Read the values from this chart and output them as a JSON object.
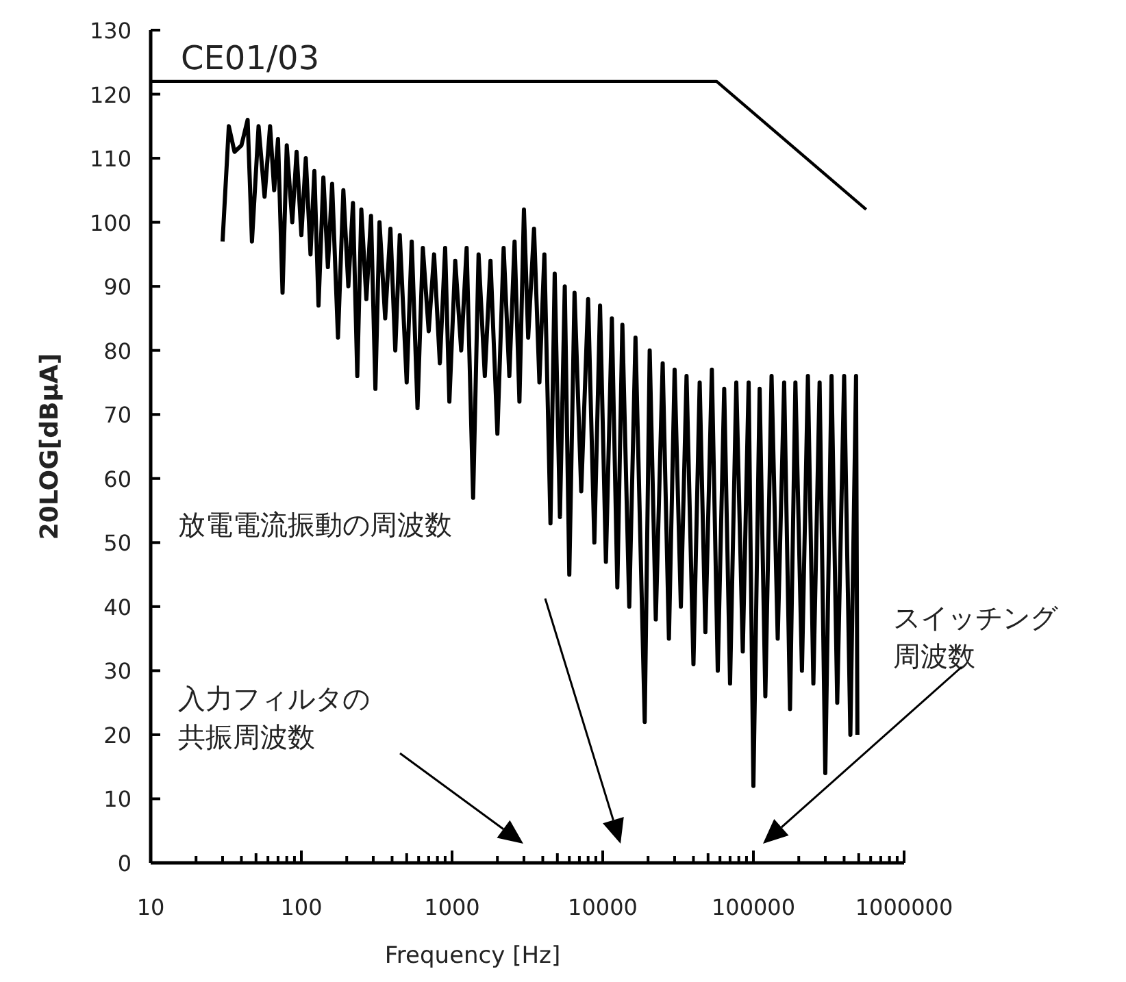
{
  "chart_data": {
    "type": "line",
    "xlabel": "Frequency [Hz]",
    "ylabel": "20LOG[dBμA]",
    "log": "x",
    "xlim": [
      10,
      1000000
    ],
    "ylim": [
      0,
      130
    ],
    "xticks": [
      10,
      100,
      1000,
      10000,
      100000,
      1000000
    ],
    "yticks": [
      0,
      10,
      20,
      30,
      40,
      50,
      60,
      70,
      80,
      90,
      100,
      110,
      120,
      130
    ],
    "series": [
      {
        "color": "#000000",
        "x": [
          30,
          33,
          36,
          40,
          44,
          47,
          52,
          57,
          62,
          66,
          70,
          75,
          80,
          87,
          93,
          100,
          107,
          115,
          122,
          130,
          140,
          150,
          160,
          175,
          190,
          205,
          220,
          235,
          250,
          270,
          290,
          310,
          330,
          360,
          390,
          420,
          450,
          500,
          540,
          590,
          640,
          700,
          760,
          830,
          900,
          960,
          1050,
          1150,
          1250,
          1380,
          1500,
          1650,
          1800,
          2000,
          2200,
          2400,
          2600,
          2800,
          3000,
          3200,
          3500,
          3800,
          4100,
          4500,
          4800,
          5200,
          5600,
          6000,
          6500,
          7200,
          8000,
          8800,
          9600,
          10500,
          11500,
          12500,
          13500,
          15000,
          16500,
          18000,
          19000,
          20500,
          22500,
          25000,
          27500,
          30000,
          33000,
          36000,
          40000,
          44000,
          48000,
          53000,
          58000,
          64000,
          70000,
          77000,
          85000,
          93000,
          100000,
          110000,
          120000,
          132000,
          145000,
          160000,
          175000,
          190000,
          210000,
          230000,
          250000,
          275000,
          300000,
          330000,
          360000,
          400000,
          440000,
          480000,
          490000
        ],
        "values": [
          97,
          115,
          111,
          112,
          116,
          97,
          115,
          104,
          115,
          105,
          113,
          89,
          112,
          100,
          111,
          98,
          110,
          95,
          108,
          87,
          107,
          93,
          106,
          82,
          105,
          90,
          103,
          76,
          102,
          88,
          101,
          74,
          100,
          85,
          99,
          80,
          98,
          75,
          97,
          71,
          96,
          83,
          95,
          78,
          96,
          72,
          94,
          80,
          96,
          57,
          95,
          76,
          94,
          67,
          96,
          76,
          97,
          72,
          102,
          82,
          99,
          75,
          95,
          53,
          92,
          54,
          90,
          45,
          89,
          58,
          88,
          50,
          87,
          47,
          85,
          43,
          84,
          40,
          82,
          45,
          22,
          80,
          38,
          78,
          35,
          77,
          40,
          76,
          31,
          75,
          36,
          77,
          30,
          74,
          28,
          75,
          33,
          75,
          12,
          74,
          26,
          76,
          35,
          75,
          24,
          75,
          30,
          76,
          28,
          75,
          14,
          76,
          25,
          76,
          20,
          76,
          20
        ]
      },
      {
        "name": "CE01/03",
        "color": "#000000",
        "x": [
          10,
          57000,
          560000
        ],
        "values": [
          122,
          122,
          102
        ]
      }
    ],
    "annotations": [
      "入力フィルタの共振周波数",
      "放電電流振動の周波数",
      "スイッチング周波数"
    ]
  }
}
